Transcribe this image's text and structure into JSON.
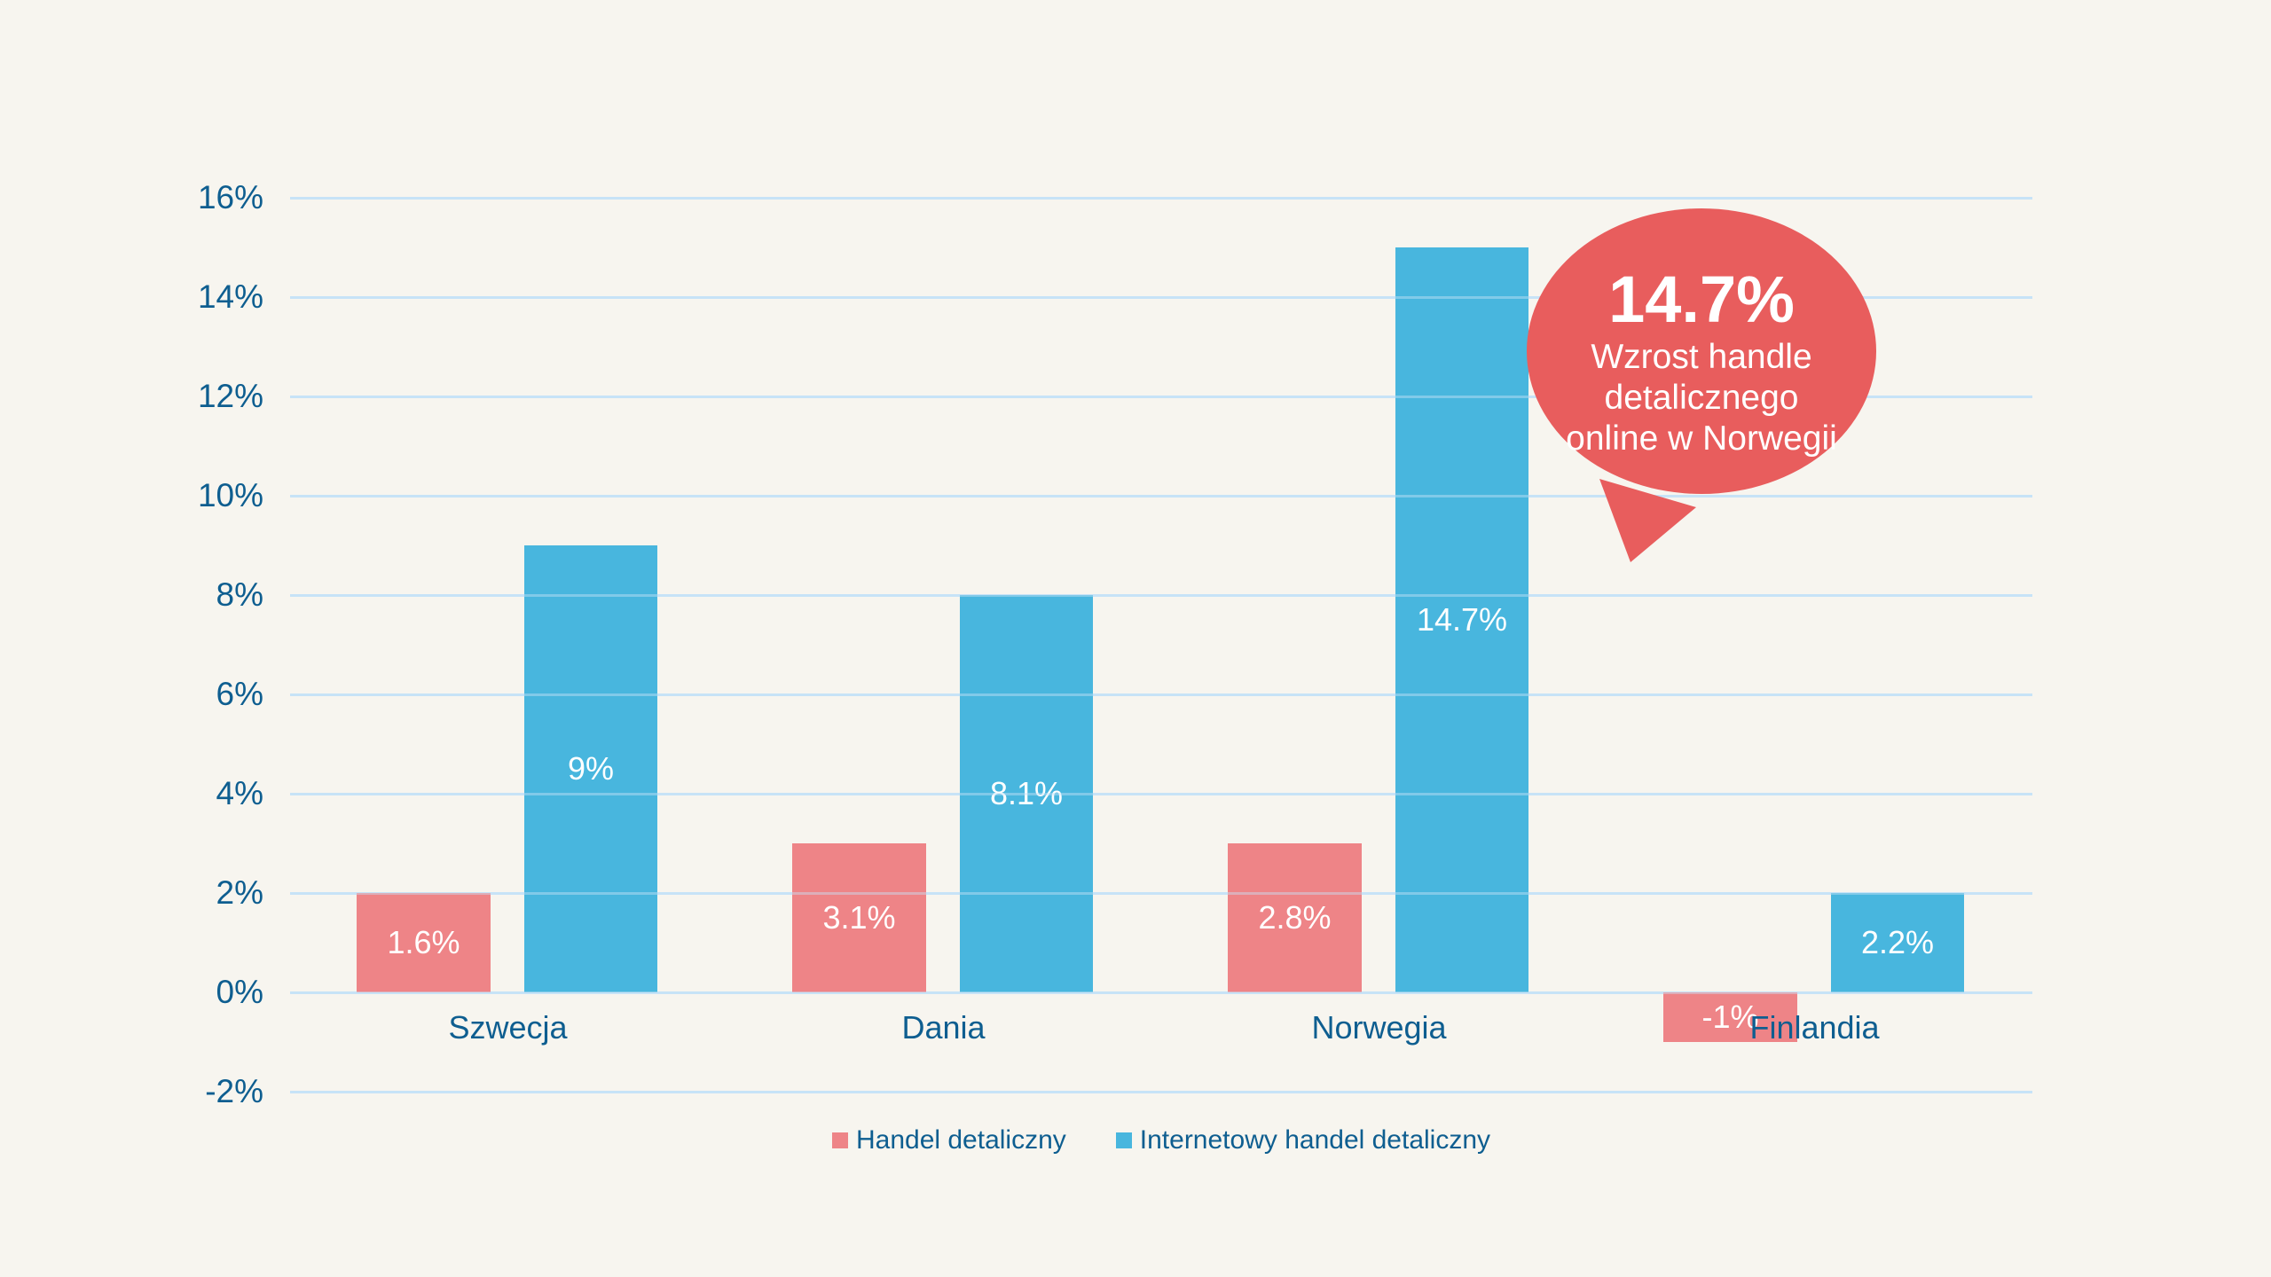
{
  "colors": {
    "background": "#F7F5EF",
    "gridline": "#C7E3F7",
    "axis_text": "#0E5E90",
    "bar_label_text": "#FFFFFF",
    "series_pink": "#EE8487",
    "series_blue": "#48B6DE",
    "callout_red": "#E85D5D",
    "callout_text": "#FFFFFF"
  },
  "chart_data": {
    "type": "bar",
    "title": "",
    "categories": [
      "Szwecja",
      "Dania",
      "Norwegia",
      "Finlandia"
    ],
    "series": [
      {
        "name": "Handel detaliczny",
        "color": "#EE8487",
        "values": [
          1.6,
          3.1,
          2.8,
          -1
        ],
        "data_labels": [
          "1.6%",
          "3.1%",
          "2.8%",
          "-1%"
        ]
      },
      {
        "name": "Internetowy handel detaliczny",
        "color": "#48B6DE",
        "values": [
          9,
          8.1,
          14.7,
          2.2
        ],
        "data_labels": [
          "9%",
          "8.1%",
          "14.7%",
          "2.2%"
        ]
      }
    ],
    "y_axis": {
      "min": -2,
      "max": 16,
      "step": 2,
      "ticks": [
        {
          "value": 16,
          "label": "16%"
        },
        {
          "value": 14,
          "label": "14%"
        },
        {
          "value": 12,
          "label": "12%"
        },
        {
          "value": 10,
          "label": "10%"
        },
        {
          "value": 8,
          "label": "8%"
        },
        {
          "value": 6,
          "label": "6%"
        },
        {
          "value": 4,
          "label": "4%"
        },
        {
          "value": 2,
          "label": "2%"
        },
        {
          "value": 0,
          "label": "0%"
        },
        {
          "value": -2,
          "label": "-2%"
        }
      ]
    },
    "grid": true,
    "legend_position": "bottom",
    "bar_heights_plotted_as_rounded_values": true
  },
  "callout": {
    "value": "14.7%",
    "lines": [
      "Wzrost handle",
      "detalicznego",
      "online w Norwegii"
    ],
    "bubble_color": "#E85D5D",
    "text_color": "#FFFFFF"
  }
}
